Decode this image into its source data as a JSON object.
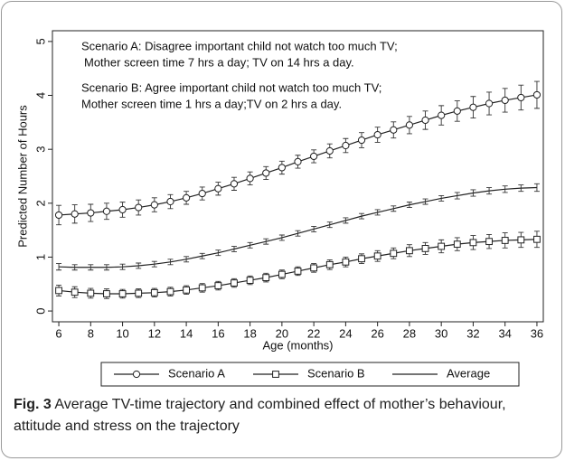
{
  "chart_data": {
    "type": "line",
    "annotations": [
      "Scenario A: Disagree important child not watch too much TV;",
      "Mother screen time 7 hrs a day; TV on 14 hrs a day.",
      "Scenario B: Agree important child not watch too much TV;",
      "Mother screen time 1 hrs a day;TV on 2 hrs a day."
    ],
    "xlabel": "Age (months)",
    "ylabel": "Predicted Number of Hours",
    "x": [
      6,
      7,
      8,
      9,
      10,
      11,
      12,
      13,
      14,
      15,
      16,
      17,
      18,
      19,
      20,
      21,
      22,
      23,
      24,
      25,
      26,
      27,
      28,
      29,
      30,
      31,
      32,
      33,
      34,
      35,
      36
    ],
    "series": [
      {
        "name": "Scenario A",
        "color": "#222222",
        "marker": "circle",
        "values": [
          1.78,
          1.8,
          1.82,
          1.85,
          1.88,
          1.92,
          1.97,
          2.03,
          2.1,
          2.18,
          2.27,
          2.36,
          2.46,
          2.56,
          2.66,
          2.77,
          2.87,
          2.97,
          3.07,
          3.17,
          3.27,
          3.36,
          3.45,
          3.54,
          3.63,
          3.71,
          3.78,
          3.85,
          3.91,
          3.96,
          4.01
        ],
        "errors": [
          0.18,
          0.17,
          0.16,
          0.15,
          0.14,
          0.14,
          0.13,
          0.13,
          0.12,
          0.12,
          0.12,
          0.12,
          0.12,
          0.12,
          0.12,
          0.12,
          0.12,
          0.13,
          0.13,
          0.14,
          0.14,
          0.15,
          0.16,
          0.17,
          0.18,
          0.19,
          0.2,
          0.21,
          0.22,
          0.23,
          0.25
        ]
      },
      {
        "name": "Scenario B",
        "color": "#222222",
        "marker": "square",
        "values": [
          0.38,
          0.35,
          0.33,
          0.32,
          0.32,
          0.33,
          0.34,
          0.36,
          0.39,
          0.43,
          0.47,
          0.52,
          0.57,
          0.62,
          0.68,
          0.74,
          0.8,
          0.86,
          0.91,
          0.97,
          1.02,
          1.07,
          1.12,
          1.16,
          1.2,
          1.24,
          1.27,
          1.29,
          1.31,
          1.32,
          1.33
        ],
        "errors": [
          0.1,
          0.1,
          0.09,
          0.09,
          0.08,
          0.08,
          0.08,
          0.08,
          0.08,
          0.08,
          0.08,
          0.08,
          0.08,
          0.08,
          0.08,
          0.08,
          0.08,
          0.09,
          0.09,
          0.09,
          0.1,
          0.1,
          0.11,
          0.11,
          0.12,
          0.12,
          0.13,
          0.13,
          0.14,
          0.14,
          0.15
        ]
      },
      {
        "name": "Average",
        "color": "#222222",
        "marker": "none",
        "values": [
          0.82,
          0.81,
          0.81,
          0.81,
          0.82,
          0.84,
          0.87,
          0.91,
          0.96,
          1.02,
          1.08,
          1.15,
          1.22,
          1.29,
          1.36,
          1.44,
          1.52,
          1.6,
          1.68,
          1.76,
          1.83,
          1.9,
          1.97,
          2.03,
          2.09,
          2.14,
          2.19,
          2.23,
          2.26,
          2.28,
          2.29
        ],
        "errors": [
          0.06,
          0.05,
          0.05,
          0.05,
          0.05,
          0.05,
          0.05,
          0.05,
          0.05,
          0.05,
          0.05,
          0.05,
          0.05,
          0.05,
          0.05,
          0.05,
          0.05,
          0.05,
          0.05,
          0.05,
          0.05,
          0.05,
          0.05,
          0.05,
          0.05,
          0.06,
          0.06,
          0.06,
          0.06,
          0.06,
          0.07
        ]
      }
    ],
    "xlim": [
      5.6,
      36.4
    ],
    "xticks": [
      6,
      8,
      10,
      12,
      14,
      16,
      18,
      20,
      22,
      24,
      26,
      28,
      30,
      32,
      34,
      36
    ],
    "ylim": [
      -0.2,
      5.2
    ],
    "yticks": [
      0,
      1,
      2,
      3,
      4,
      5
    ],
    "grid": false,
    "legend": "bottom",
    "caption_label": "Fig. 3",
    "caption": "Average TV-time trajectory and combined effect of mother’s behaviour, attitude and stress on the trajectory"
  }
}
